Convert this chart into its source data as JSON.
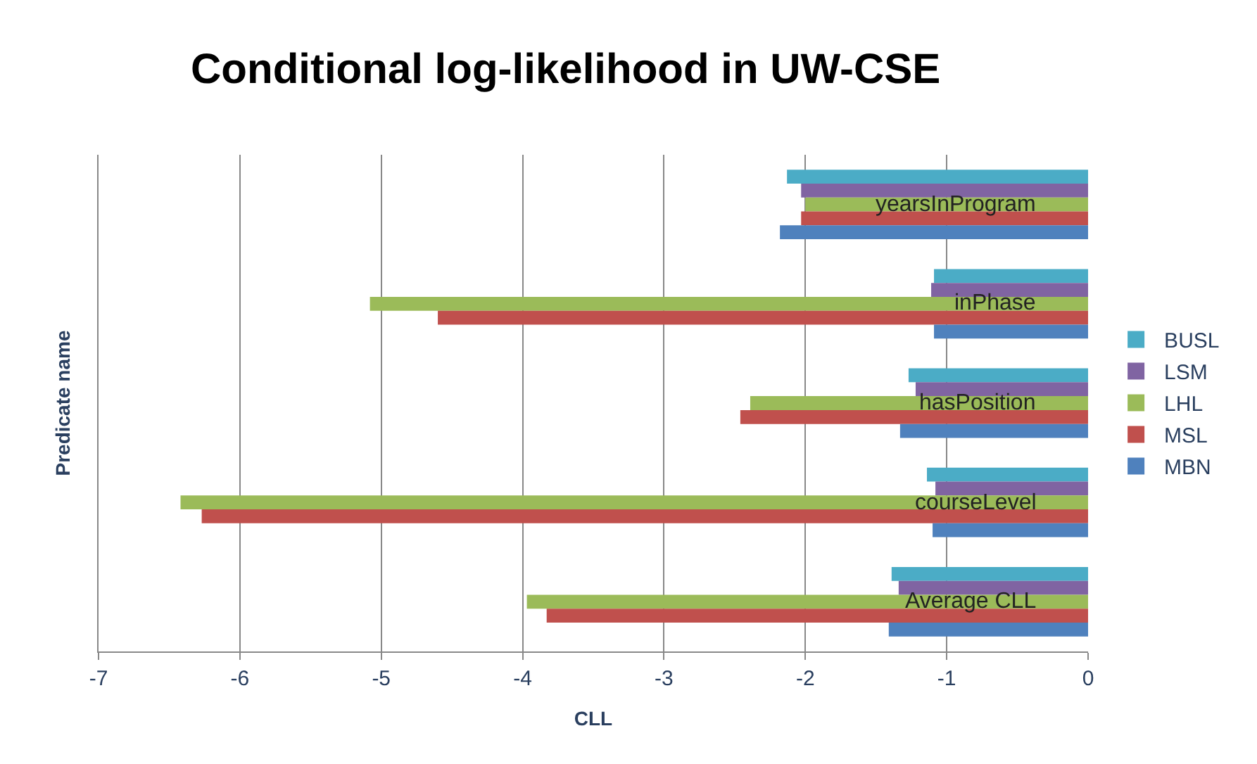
{
  "chart_data": {
    "type": "bar",
    "orientation": "horizontal",
    "title": "Conditional log-likelihood in UW-CSE",
    "xlabel": "CLL",
    "ylabel": "Predicate name",
    "categories": [
      "yearsInProgram",
      "inPhase",
      "hasPosition",
      "courseLevel",
      "Average CLL"
    ],
    "series": [
      {
        "name": "BUSL",
        "color": "#4bacc6",
        "values": [
          -2.13,
          -1.09,
          -1.27,
          -1.14,
          -1.39
        ]
      },
      {
        "name": "LSM",
        "color": "#8064a2",
        "values": [
          -2.03,
          -1.11,
          -1.22,
          -1.08,
          -1.34
        ]
      },
      {
        "name": "LHL",
        "color": "#9bbb59",
        "values": [
          -2.0,
          -5.08,
          -2.39,
          -6.42,
          -3.97
        ]
      },
      {
        "name": "MSL",
        "color": "#c0504d",
        "values": [
          -2.03,
          -4.6,
          -2.46,
          -6.27,
          -3.83
        ]
      },
      {
        "name": "MBN",
        "color": "#4f81bd",
        "values": [
          -2.18,
          -1.09,
          -1.33,
          -1.1,
          -1.41
        ]
      }
    ],
    "xlim": [
      -7,
      0
    ],
    "xticks": [
      -7,
      -6,
      -5,
      -4,
      -3,
      -2,
      -1,
      0
    ],
    "grid": "x",
    "legend": "right",
    "tick_labels": "x"
  }
}
